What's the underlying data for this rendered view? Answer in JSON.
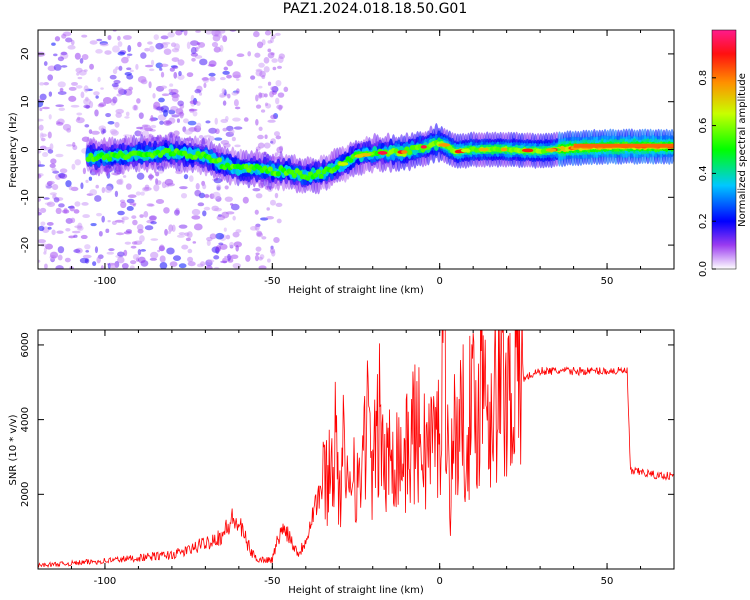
{
  "title": "PAZ1.2024.018.18.50.G01",
  "chart_data": [
    {
      "type": "heatmap",
      "xlabel": "Height of straight line (km)",
      "ylabel": "Frequency (Hz)",
      "xlim": [
        -120,
        70
      ],
      "ylim": [
        -25,
        25
      ],
      "xticks": [
        -100,
        -50,
        0,
        50
      ],
      "yticks": [
        -20,
        -10,
        0,
        10,
        20
      ],
      "colorbar": {
        "label": "Normalized spectral amplitude",
        "range": [
          0.0,
          1.0
        ],
        "ticks": [
          "0.0",
          "0.2",
          "0.4",
          "0.6",
          "0.8"
        ]
      },
      "ridge": {
        "x": [
          -100,
          -90,
          -80,
          -70,
          -65,
          -60,
          -55,
          -50,
          -45,
          -40,
          -35,
          -30,
          -25,
          -20,
          -10,
          0,
          5,
          10,
          20,
          30,
          40,
          50,
          60,
          70
        ],
        "y": [
          -1.5,
          -1,
          -0.5,
          -1.5,
          -3,
          -4,
          -4,
          -4.5,
          -4.5,
          -5.5,
          -5,
          -3.5,
          -1.5,
          -0.8,
          -0.5,
          1.5,
          -0.5,
          0,
          0,
          -0.3,
          0.3,
          0.6,
          0.6,
          0.6
        ]
      }
    },
    {
      "type": "line",
      "xlabel": "Height of straight line (km)",
      "ylabel": "SNR (10 * v/v)",
      "xlim": [
        -120,
        70
      ],
      "ylim": [
        0,
        6400
      ],
      "xticks": [
        -100,
        -50,
        0,
        50
      ],
      "yticks": [
        2000,
        4000,
        6000
      ],
      "color": "#ff0000",
      "series": [
        {
          "x": [
            -120,
            -110,
            -100,
            -90,
            -80,
            -75,
            -70,
            -65,
            -62,
            -60,
            -58,
            -56,
            -54,
            -50,
            -48,
            -46,
            -44,
            -42,
            -40,
            -38,
            -36,
            -34,
            -32,
            -31,
            -30,
            -29,
            -28,
            -26,
            -24,
            -22,
            -20,
            -18,
            -16,
            -14,
            -12,
            -10,
            -8,
            -6,
            -4,
            -2,
            0,
            1,
            2,
            3,
            4,
            6,
            8,
            10,
            12,
            13,
            14,
            16,
            18,
            20,
            22,
            25,
            30,
            35,
            40,
            45,
            50,
            55,
            56,
            57,
            60,
            65,
            70
          ],
          "y": [
            100,
            150,
            220,
            300,
            380,
            500,
            700,
            900,
            1300,
            1200,
            800,
            400,
            250,
            250,
            900,
            1100,
            700,
            400,
            800,
            1500,
            2000,
            2500,
            2800,
            4000,
            1500,
            3500,
            1800,
            3200,
            2000,
            4200,
            2500,
            4000,
            2500,
            3500,
            3000,
            3000,
            3700,
            3500,
            3200,
            3500,
            3500,
            6400,
            5500,
            1500,
            3600,
            3800,
            4000,
            4200,
            4500,
            6300,
            4600,
            4500,
            4700,
            4800,
            5000,
            5100,
            5300,
            5300,
            5300,
            5300,
            5300,
            5300,
            5300,
            2600,
            2600,
            2500,
            2500
          ]
        }
      ]
    }
  ]
}
